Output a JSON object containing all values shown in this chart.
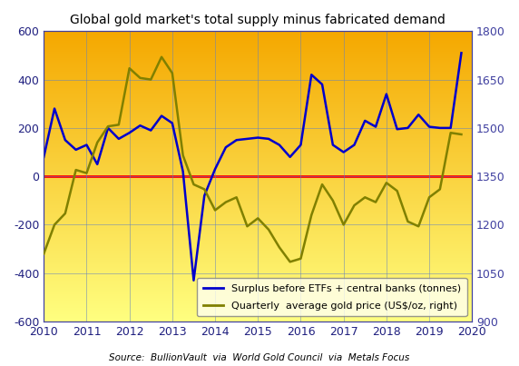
{
  "title": "Global gold market's total supply minus fabricated demand",
  "source": "Source:  BullionVault  via  World Gold Council  via  Metals Focus",
  "xlim": [
    2010.0,
    2020.0
  ],
  "ylim_left": [
    -600,
    600
  ],
  "ylim_right": [
    900,
    1800
  ],
  "ylabel_left": "",
  "ylabel_right": "",
  "xticks": [
    2010,
    2011,
    2012,
    2013,
    2014,
    2015,
    2016,
    2017,
    2018,
    2019,
    2020
  ],
  "yticks_left": [
    -600,
    -400,
    -200,
    0,
    200,
    400,
    600
  ],
  "yticks_right": [
    900,
    1050,
    1200,
    1350,
    1500,
    1650,
    1800
  ],
  "bg_gradient_top": "#F5A800",
  "bg_gradient_bottom": "#FFFF80",
  "surplus_color": "#0000CC",
  "price_color": "#808000",
  "zero_line_color": "#FF0000",
  "legend_bg": "#FFFFF0",
  "surplus_label": "Surplus before ETFs + central banks (tonnes)",
  "price_label": "Quarterly  average gold price (US$/oz, right)",
  "surplus_x": [
    2010.0,
    2010.25,
    2010.5,
    2010.75,
    2011.0,
    2011.25,
    2011.5,
    2011.75,
    2012.0,
    2012.25,
    2012.5,
    2012.75,
    2013.0,
    2013.25,
    2013.5,
    2013.75,
    2014.0,
    2014.25,
    2014.5,
    2014.75,
    2015.0,
    2015.25,
    2015.5,
    2015.75,
    2016.0,
    2016.25,
    2016.5,
    2016.75,
    2017.0,
    2017.25,
    2017.5,
    2017.75,
    2018.0,
    2018.25,
    2018.5,
    2018.75,
    2019.0,
    2019.25,
    2019.5,
    2019.75
  ],
  "surplus_y": [
    80,
    280,
    150,
    110,
    130,
    50,
    200,
    155,
    180,
    210,
    190,
    250,
    220,
    20,
    -430,
    -80,
    30,
    120,
    150,
    155,
    160,
    155,
    130,
    80,
    130,
    420,
    380,
    130,
    100,
    130,
    230,
    205,
    340,
    195,
    200,
    255,
    205,
    200,
    200,
    510
  ],
  "price_x": [
    2010.0,
    2010.25,
    2010.5,
    2010.75,
    2011.0,
    2011.25,
    2011.5,
    2011.75,
    2012.0,
    2012.25,
    2012.5,
    2012.75,
    2013.0,
    2013.25,
    2013.5,
    2013.75,
    2014.0,
    2014.25,
    2014.5,
    2014.75,
    2015.0,
    2015.25,
    2015.5,
    2015.75,
    2016.0,
    2016.25,
    2016.5,
    2016.75,
    2017.0,
    2017.25,
    2017.5,
    2017.75,
    2018.0,
    2018.25,
    2018.5,
    2018.75,
    2019.0,
    2019.25,
    2019.5,
    2019.75
  ],
  "price_y": [
    1110,
    1200,
    1235,
    1370,
    1360,
    1455,
    1505,
    1510,
    1685,
    1655,
    1650,
    1720,
    1670,
    1415,
    1325,
    1310,
    1245,
    1270,
    1285,
    1195,
    1220,
    1185,
    1130,
    1085,
    1095,
    1230,
    1325,
    1275,
    1200,
    1260,
    1285,
    1270,
    1330,
    1305,
    1210,
    1195,
    1285,
    1310,
    1485,
    1480
  ]
}
